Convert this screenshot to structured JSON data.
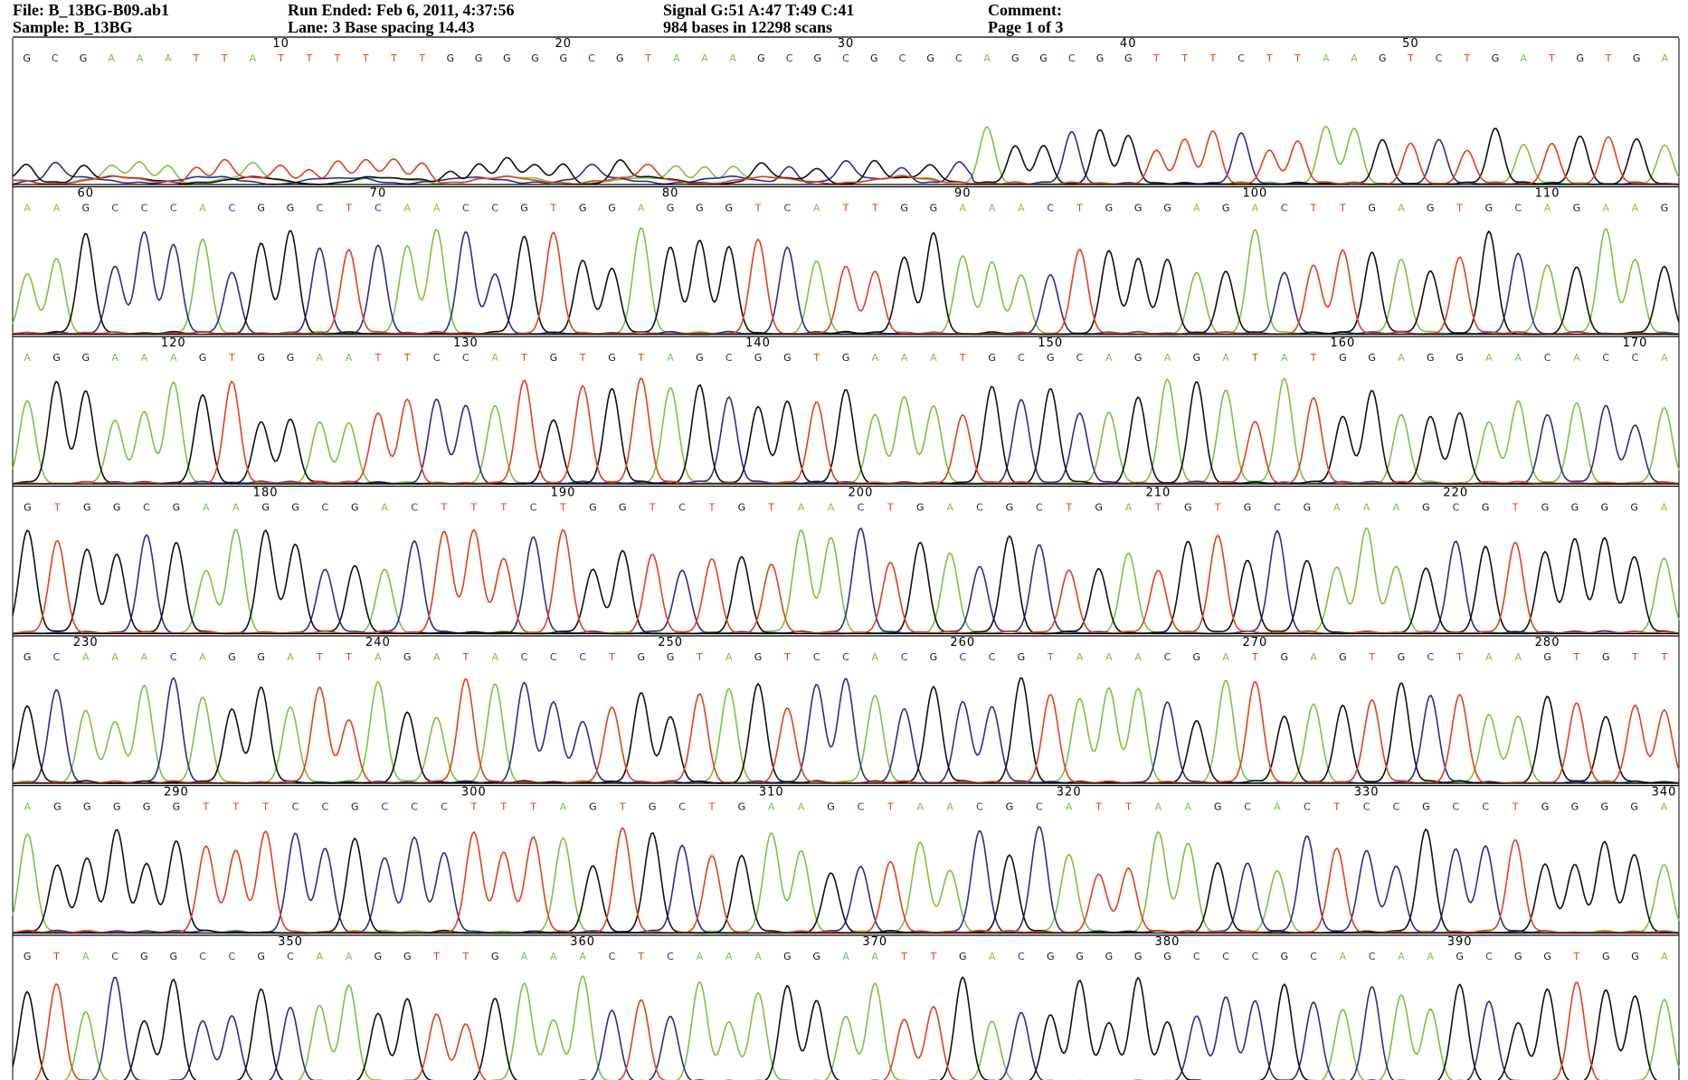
{
  "header": {
    "file": "File: B_13BG-B09.ab1",
    "sample": "Sample: B_13BG",
    "run_ended": "Run Ended: Feb 6, 2011, 4:37:56",
    "lane": "Lane: 3   Base spacing 14.43",
    "signal": "Signal G:51 A:47 T:49 C:41",
    "bases": "984 bases in 12298 scans",
    "comment": "Comment:",
    "page": "Page 1 of 3"
  },
  "colors": {
    "A": "#7dc242",
    "C": "#2b2f8f",
    "G": "#111111",
    "T": "#e0401e",
    "axis": "#000000"
  },
  "chart_data": {
    "type": "line",
    "title": "",
    "rows": [
      {
        "start": 1,
        "ticks": [
          10,
          20,
          30,
          40,
          50
        ],
        "bases": "GCGAAATTATTTTTTGGGGGCGTAAAGCGCGCGCAGGCGGTTTCTTAAGTCTGATGTGA"
      },
      {
        "start": 58,
        "ticks": [
          60,
          70,
          80,
          90,
          100,
          110
        ],
        "bases": "AAGCCCACGGCTCAACCGTGGAGGGTCATTGGAAACTGGGAGACTTGAGTGCAGAAG"
      },
      {
        "start": 115,
        "ticks": [
          120,
          130,
          140,
          150,
          160,
          170
        ],
        "bases": "AGGAAAGTGGAATTCCATGTGTAGCGGTGAAATGCGCAGAGATATGGAGGAACACCA"
      },
      {
        "start": 172,
        "ticks": [
          180,
          190,
          200,
          210,
          220
        ],
        "bases": "GTGGCGAAGGCGACTTTCTGGTCTGTAACTGACGCTGATGTGCGAAAGCGTGGGGA"
      },
      {
        "start": 228,
        "ticks": [
          230,
          240,
          250,
          260,
          270,
          280
        ],
        "bases": "GCAAACAGGATTAGATACCCTGGTAGTCCACGCCGTAAACGATGAGTGCTAAGTGTT"
      },
      {
        "start": 285,
        "ticks": [
          290,
          300,
          310,
          320,
          330,
          340
        ],
        "bases": "AGGGGGTTTCCGCCCTTTAGTGCTGAAGCTAACGCATTAAGCACTCCGCCTGGGGA"
      },
      {
        "start": 341,
        "ticks": [
          350,
          360,
          370,
          380,
          390
        ],
        "bases": "GTACGGCCGCAAGGTTGAAACTCAAAGGAATTGACGGGGGCCCGCACAAGCGGTGGA"
      }
    ]
  }
}
